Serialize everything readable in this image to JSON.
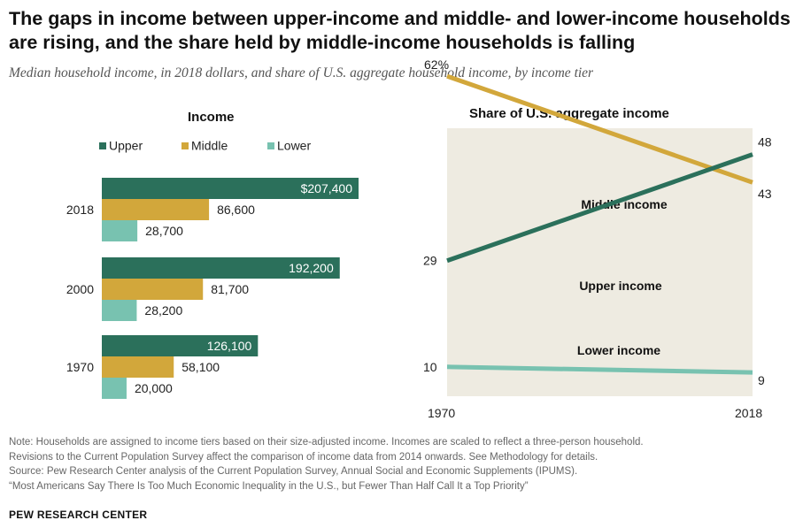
{
  "title": "The gaps in income between upper-income and middle- and lower-income households are rising, and the share held by middle-income households is falling",
  "subtitle": "Median household income, in 2018 dollars, and share of U.S. aggregate household income, by income tier",
  "colors": {
    "upper": "#2b705b",
    "middle": "#d2a73b",
    "lower": "#78c2b0",
    "line_panel_bg": "#eeebe1"
  },
  "chart_data": [
    {
      "type": "bar",
      "orientation": "horizontal",
      "title": "Income",
      "categories": [
        "2018",
        "2000",
        "1970"
      ],
      "series": [
        {
          "name": "Upper",
          "values": [
            207400,
            192200,
            126100
          ],
          "labels": [
            "$207,400",
            "192,200",
            "126,100"
          ]
        },
        {
          "name": "Middle",
          "values": [
            86600,
            81700,
            58100
          ],
          "labels": [
            "86,600",
            "81,700",
            "58,100"
          ]
        },
        {
          "name": "Lower",
          "values": [
            28700,
            28200,
            20000
          ],
          "labels": [
            "28,700",
            "28,200",
            "20,000"
          ]
        }
      ],
      "legend_placement": "top",
      "grid": false
    },
    {
      "type": "line",
      "title": "Share of U.S. aggregate income",
      "x": [
        1970,
        2018
      ],
      "x_tick_labels": [
        "1970",
        "2018"
      ],
      "series": [
        {
          "name": "Middle income",
          "values": [
            62,
            43
          ],
          "labels": [
            "62%",
            "43"
          ]
        },
        {
          "name": "Upper income",
          "values": [
            29,
            48
          ],
          "labels": [
            "29",
            "48"
          ]
        },
        {
          "name": "Lower income",
          "values": [
            10,
            9
          ],
          "labels": [
            "10",
            "9"
          ]
        }
      ],
      "grid": false
    }
  ],
  "footer": {
    "note_line1": "Note: Households are assigned to income tiers based on their size-adjusted income. Incomes are scaled to reflect a three-person household.",
    "note_line2": "Revisions to the Current Population Survey affect the comparison of income data from 2014 onwards. See Methodology for details.",
    "source": "Source: Pew Research Center analysis of the Current Population Survey, Annual Social and Economic Supplements (IPUMS).",
    "report": "“Most Americans Say There Is Too Much Economic Inequality in the U.S., but Fewer Than Half Call It a Top Priority”",
    "brand": "PEW RESEARCH CENTER"
  }
}
